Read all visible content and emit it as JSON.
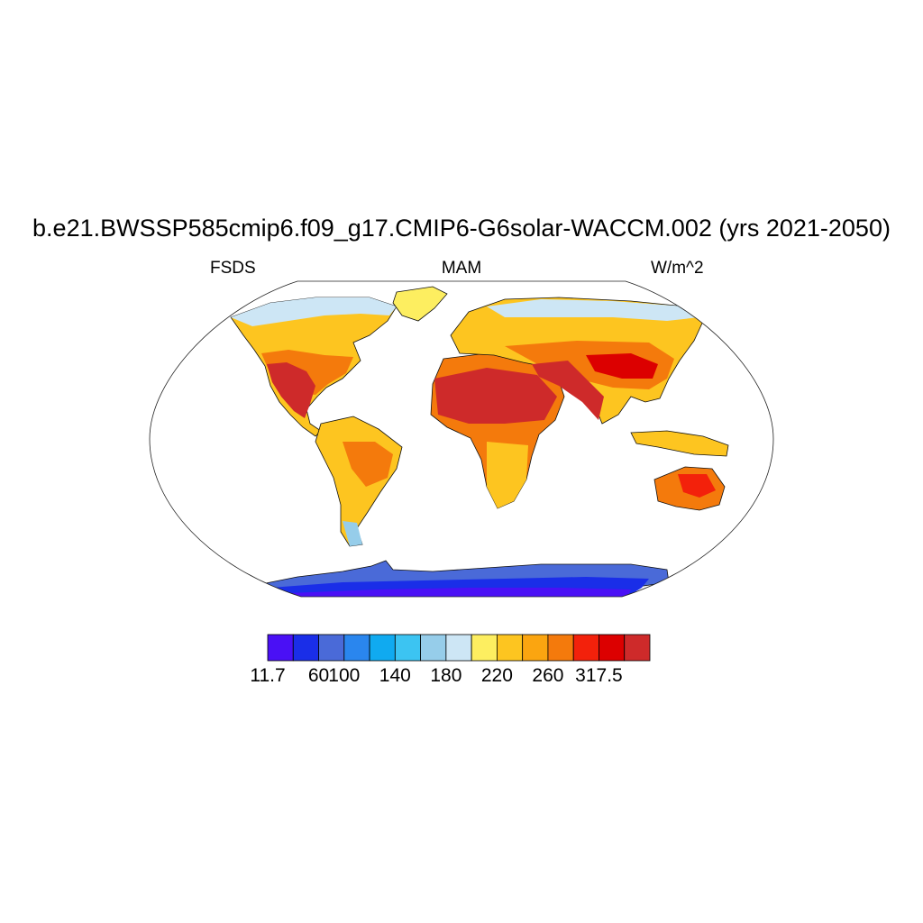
{
  "title": "b.e21.BWSSP585cmip6.f09_g17.CMIP6-G6solar-WACCM.002 (yrs 2021-2050)",
  "left_string": "FSDS",
  "center_string": "MAM",
  "right_string": "W/m^2",
  "colorbar": {
    "colors": [
      "#4a10f5",
      "#1a2ee8",
      "#4a6ad8",
      "#2a86ee",
      "#10aaf0",
      "#3cc4f2",
      "#96cdea",
      "#cde6f5",
      "#fdee60",
      "#fdc520",
      "#fba510",
      "#f47a0c",
      "#f3210b",
      "#dc0000",
      "#ce2a2a"
    ],
    "labels": [
      {
        "text": "11.7",
        "index": 0
      },
      {
        "text": "60",
        "index": 2
      },
      {
        "text": "100",
        "index": 3
      },
      {
        "text": "140",
        "index": 5
      },
      {
        "text": "180",
        "index": 7
      },
      {
        "text": "220",
        "index": 9
      },
      {
        "text": "260",
        "index": 11
      },
      {
        "text": "317.5",
        "index": 13
      }
    ]
  },
  "map": {
    "projection": "robinson",
    "variable": "FSDS",
    "season": "MAM",
    "units": "W/m^2"
  }
}
